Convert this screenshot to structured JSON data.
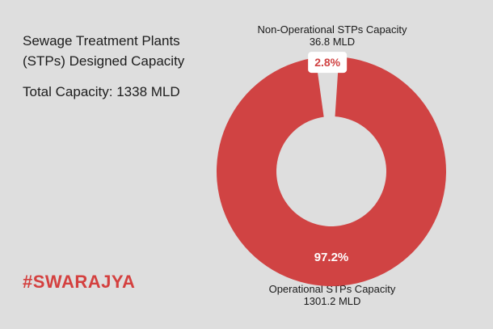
{
  "title": {
    "line1": "Sewage Treatment Plants",
    "line2": "(STPs) Designed Capacity"
  },
  "total": "Total Capacity: 1338 MLD",
  "logo": {
    "text": "#SWARAJYA",
    "color": "#d4403f"
  },
  "colors": {
    "background": "#dedede",
    "slice": "#d04343",
    "label_box": "#ffffff"
  },
  "chart_data": {
    "type": "pie",
    "subtype": "donut",
    "title": "Sewage Treatment Plants (STPs) Designed Capacity",
    "total_label": "Total Capacity: 1338 MLD",
    "unit": "MLD",
    "slices": [
      {
        "name": "Non-Operational STPs Capacity",
        "value": 36.8,
        "value_label": "36.8 MLD",
        "percent": 2.8,
        "percent_label": "2.8%"
      },
      {
        "name": "Operational STPs Capacity",
        "value": 1301.2,
        "value_label": "1301.2 MLD",
        "percent": 97.2,
        "percent_label": "97.2%"
      }
    ]
  }
}
